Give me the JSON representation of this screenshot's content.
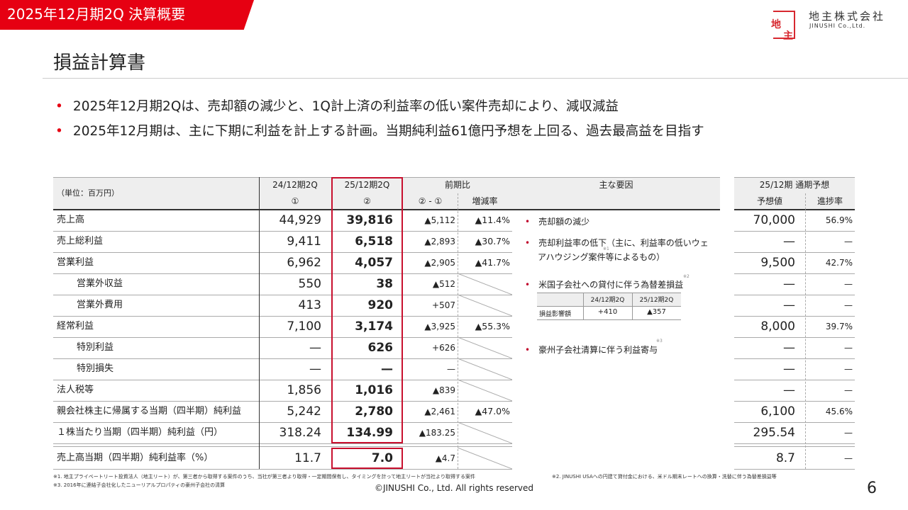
{
  "header_bar": {
    "title": "2025年12月期2Q 決算概要"
  },
  "logo": {
    "mark_top": "地",
    "mark_bottom": "主",
    "name_ja": "地主株式会社",
    "name_en": "JINUSHI Co.,Ltd.",
    "color": "#d7282f"
  },
  "page_title": "損益計算書",
  "bullets": [
    "2025年12月期2Qは、売却額の減少と、1Q計上済の利益率の低い案件売却により、減収減益",
    "2025年12月期は、主に下期に利益を計上する計画。当期純利益61億円予想を上回る、過去最高益を目指す"
  ],
  "table": {
    "unit": "（単位：百万円）",
    "col1": "24/12期2Q",
    "col1_sub": "①",
    "col2": "25/12期2Q",
    "col2_sub": "②",
    "yoy": "前期比",
    "diff": "② - ①",
    "rate": "増減率",
    "reasons_header": "主な要因",
    "forecast_header": "25/12期 通期予想",
    "forecast": "予想値",
    "progress": "進捗率",
    "rows": [
      {
        "label": "売上高",
        "indent": false,
        "v1": "44,929",
        "v2": "39,816",
        "diff": "▲5,112",
        "rate": "▲11.4%",
        "fc": "70,000",
        "pg": "56.9%"
      },
      {
        "label": "売上総利益",
        "indent": false,
        "v1": "9,411",
        "v2": "6,518",
        "diff": "▲2,893",
        "rate": "▲30.7%",
        "fc": "—",
        "pg": "—"
      },
      {
        "label": "営業利益",
        "indent": false,
        "v1": "6,962",
        "v2": "4,057",
        "diff": "▲2,905",
        "rate": "▲41.7%",
        "fc": "9,500",
        "pg": "42.7%"
      },
      {
        "label": "営業外収益",
        "indent": true,
        "v1": "550",
        "v2": "38",
        "diff": "▲512",
        "rate": null,
        "fc": "—",
        "pg": "—"
      },
      {
        "label": "営業外費用",
        "indent": true,
        "v1": "413",
        "v2": "920",
        "diff": "+507",
        "rate": null,
        "fc": "—",
        "pg": "—"
      },
      {
        "label": "経常利益",
        "indent": false,
        "v1": "7,100",
        "v2": "3,174",
        "diff": "▲3,925",
        "rate": "▲55.3%",
        "fc": "8,000",
        "pg": "39.7%"
      },
      {
        "label": "特別利益",
        "indent": true,
        "v1": "—",
        "v2": "626",
        "diff": "+626",
        "rate": null,
        "fc": "—",
        "pg": "—"
      },
      {
        "label": "特別損失",
        "indent": true,
        "v1": "—",
        "v2": "—",
        "diff": "—",
        "rate": null,
        "fc": "—",
        "pg": "—"
      },
      {
        "label": "法人税等",
        "indent": false,
        "v1": "1,856",
        "v2": "1,016",
        "diff": "▲839",
        "rate": null,
        "fc": "—",
        "pg": "—"
      },
      {
        "label": "親会社株主に帰属する当期（四半期）純利益",
        "indent": false,
        "v1": "5,242",
        "v2": "2,780",
        "diff": "▲2,461",
        "rate": "▲47.0%",
        "fc": "6,100",
        "pg": "45.6%"
      },
      {
        "label": "１株当たり当期（四半期）純利益（円）",
        "indent": false,
        "v1": "318.24",
        "v2": "134.99",
        "diff": "▲183.25",
        "rate": null,
        "fc": "295.54",
        "pg": "—"
      }
    ],
    "last_row": {
      "label": "売上高当期（四半期）純利益率（%）",
      "v1": "11.7",
      "v2": "7.0",
      "diff": "▲4.7",
      "rate": null,
      "fc": "8.7",
      "pg": "—"
    }
  },
  "reasons": {
    "r1": "売却額の減少",
    "r2a": "売却利益率の低下（主に、利益率の低いウェ",
    "r2b": "アハウジング案件等によるもの）",
    "r3": "米国子会社への貸付に伴う為替差損益",
    "r4": "豪州子会社清算に伴う利益寄与",
    "note1": "※1",
    "note2": "※2",
    "note3": "※3",
    "fx_table": {
      "h1": "24/12期2Q",
      "h2": "25/12期2Q",
      "label": "損益影響額",
      "v1": "+410",
      "v2": "▲357"
    }
  },
  "footnotes": {
    "n1": "※1. 地主プライベートリート投資法人（地主リート）が、第三者から取得する案件のうち、当社が第三者より取得・一定期間保有し、タイミングを計って地主リートが当社より取得する案件",
    "n2": "※2. JINUSHI USAへの円建て貸付金における、米ドル期末レートへの換算・洗替に伴う為替差損益等",
    "n3": "※3. 2016年に連結子会社化したニューリアルプロパティの豪州子会社の清算"
  },
  "copyright": "©JINUSHI Co., Ltd. All rights reserved",
  "page_number": "6",
  "colors": {
    "brand_red": "#e60012",
    "highlight_box": "#c8102e"
  }
}
